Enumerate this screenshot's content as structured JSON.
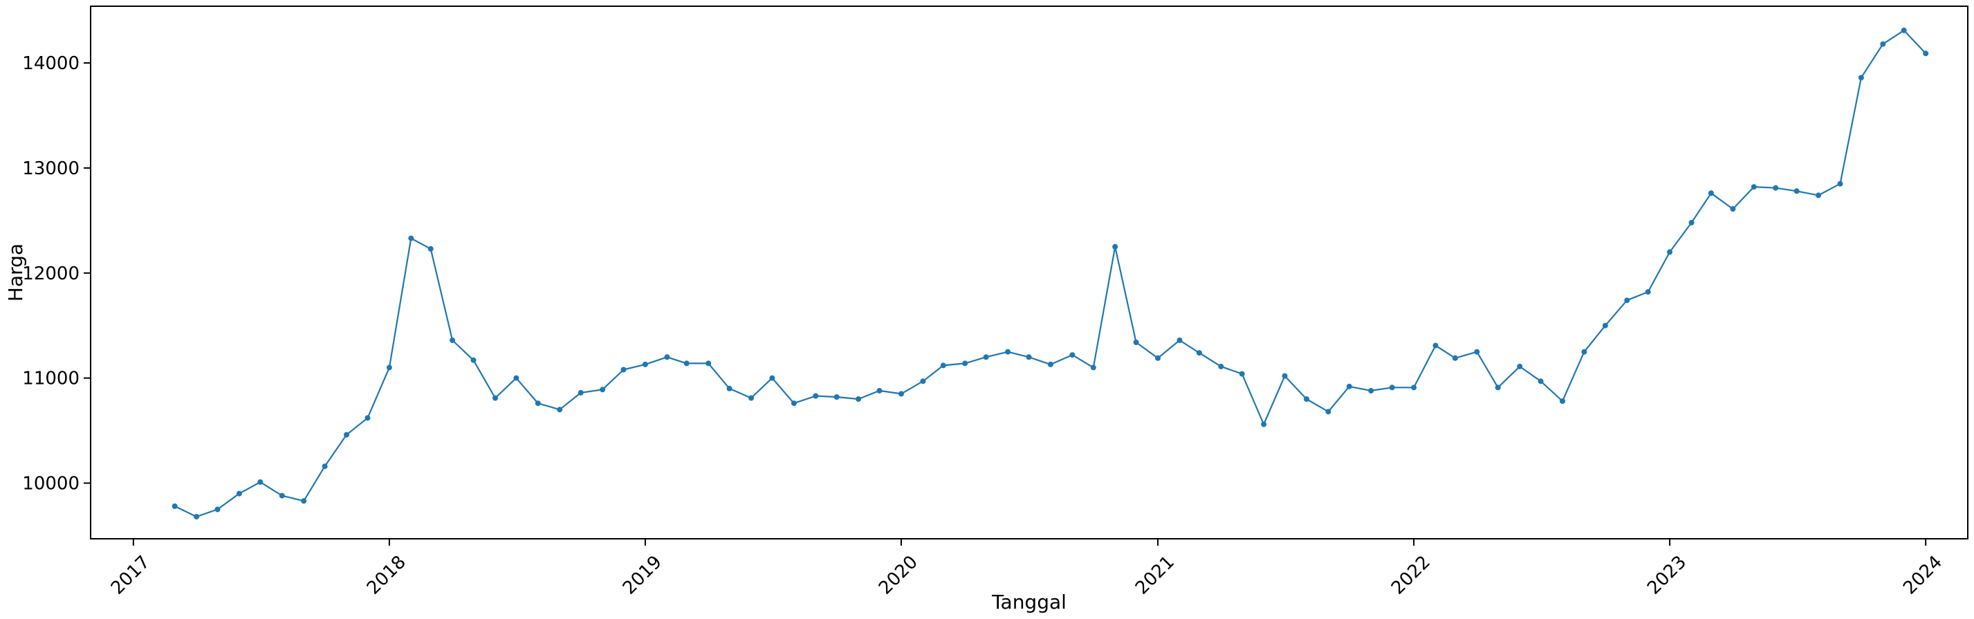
{
  "chart_data": {
    "type": "line",
    "title": "",
    "xlabel": "Tanggal",
    "ylabel": "Harga",
    "x_tick_labels": [
      "2017",
      "2018",
      "2019",
      "2020",
      "2021",
      "2022",
      "2023",
      "2024"
    ],
    "y_tick_labels": [
      "10000",
      "11000",
      "12000",
      "13000",
      "14000"
    ],
    "y_ticks": [
      10000,
      11000,
      12000,
      13000,
      14000
    ],
    "xlim": [
      "2016-11-01",
      "2024-03-01"
    ],
    "ylim": [
      9470,
      14540
    ],
    "grid": false,
    "legend": null,
    "line_color": "#1f77b4",
    "series": [
      {
        "x": [
          "2017-03-01",
          "2017-04-01",
          "2017-05-01",
          "2017-06-01",
          "2017-07-01",
          "2017-08-01",
          "2017-09-01",
          "2017-10-01",
          "2017-11-01",
          "2017-12-01",
          "2018-01-01",
          "2018-02-01",
          "2018-03-01",
          "2018-04-01",
          "2018-05-01",
          "2018-06-01",
          "2018-07-01",
          "2018-08-01",
          "2018-09-01",
          "2018-10-01",
          "2018-11-01",
          "2018-12-01",
          "2019-01-01",
          "2019-02-01",
          "2019-03-01",
          "2019-04-01",
          "2019-05-01",
          "2019-06-01",
          "2019-07-01",
          "2019-08-01",
          "2019-09-01",
          "2019-10-01",
          "2019-11-01",
          "2019-12-01",
          "2020-01-01",
          "2020-02-01",
          "2020-03-01",
          "2020-04-01",
          "2020-05-01",
          "2020-06-01",
          "2020-07-01",
          "2020-08-01",
          "2020-09-01",
          "2020-10-01",
          "2020-11-01",
          "2020-12-01",
          "2021-01-01",
          "2021-02-01",
          "2021-03-01",
          "2021-04-01",
          "2021-05-01",
          "2021-06-01",
          "2021-07-01",
          "2021-08-01",
          "2021-09-01",
          "2021-10-01",
          "2021-11-01",
          "2021-12-01",
          "2022-01-01",
          "2022-02-01",
          "2022-03-01",
          "2022-04-01",
          "2022-05-01",
          "2022-06-01",
          "2022-07-01",
          "2022-08-01",
          "2022-09-01",
          "2022-10-01",
          "2022-11-01",
          "2022-12-01",
          "2023-01-01",
          "2023-02-01",
          "2023-03-01",
          "2023-04-01",
          "2023-05-01",
          "2023-06-01",
          "2023-07-01",
          "2023-08-01",
          "2023-09-01",
          "2023-10-01",
          "2023-11-01",
          "2023-12-01",
          "2024-01-01"
        ],
        "y": [
          9780,
          9680,
          9750,
          9900,
          10010,
          9880,
          9830,
          10160,
          10460,
          10620,
          11100,
          12330,
          12230,
          11360,
          11170,
          10810,
          11000,
          10760,
          10700,
          10860,
          10890,
          11080,
          11130,
          11200,
          11140,
          11140,
          10900,
          10810,
          11000,
          10760,
          10830,
          10820,
          10800,
          10880,
          10850,
          10970,
          11120,
          11140,
          11200,
          11250,
          11200,
          11130,
          11220,
          11100,
          12250,
          11340,
          11190,
          11360,
          11240,
          11110,
          11040,
          10560,
          11020,
          10800,
          10680,
          10920,
          10880,
          10910,
          10910,
          11310,
          11190,
          11250,
          10910,
          11110,
          10970,
          10780,
          11250,
          11500,
          11740,
          11820,
          12200,
          12480,
          12760,
          12610,
          12820,
          12810,
          12780,
          12740,
          12850,
          13860,
          14180,
          14310,
          14090
        ]
      }
    ]
  }
}
